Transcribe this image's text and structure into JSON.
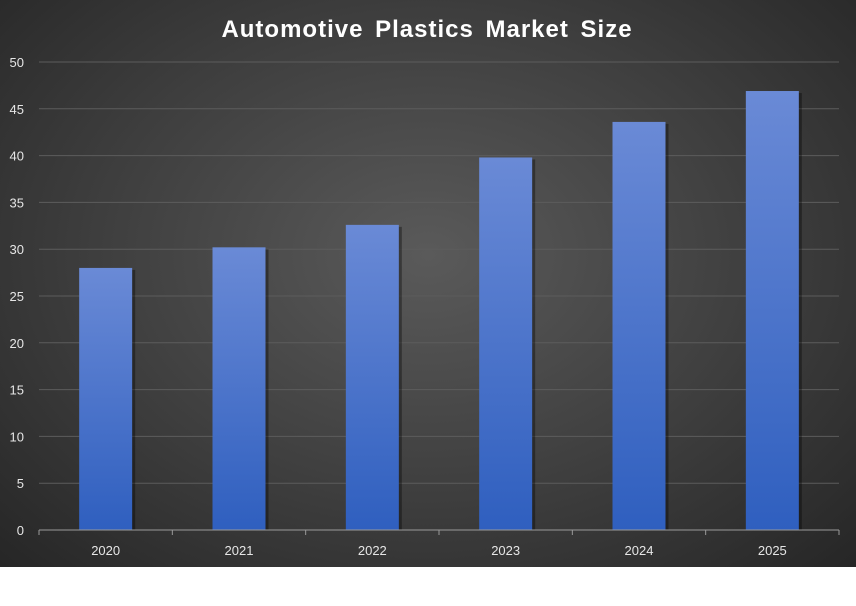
{
  "chart_data": {
    "type": "bar",
    "title": "Automotive Plastics Market Size",
    "xlabel": "",
    "ylabel": "",
    "categories": [
      "2020",
      "2021",
      "2022",
      "2023",
      "2024",
      "2025"
    ],
    "values": [
      28.0,
      30.2,
      32.6,
      39.8,
      43.6,
      46.9
    ],
    "ylim": [
      0,
      50
    ],
    "yticks": [
      0,
      5,
      10,
      15,
      20,
      25,
      30,
      35,
      40,
      45,
      50
    ],
    "grid": true,
    "legend": "none",
    "colors": {
      "bar_top": "#6a8ad6",
      "bar_bottom": "#2f5fbf",
      "background": "#3e3e3e"
    }
  }
}
